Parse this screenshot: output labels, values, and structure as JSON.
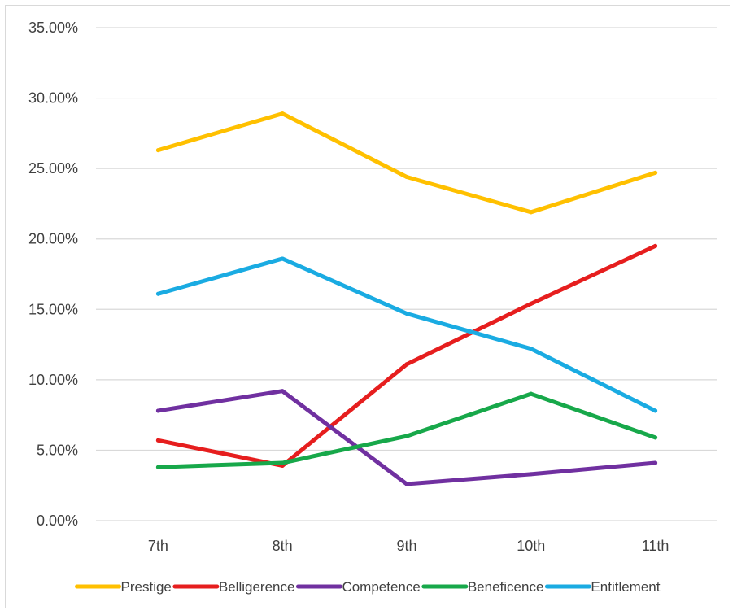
{
  "chart_data": {
    "type": "line",
    "title": "",
    "xlabel": "",
    "ylabel": "",
    "categories": [
      "7th",
      "8th",
      "9th",
      "10th",
      "11th"
    ],
    "ylim": [
      0,
      0.35
    ],
    "yticks": [
      0,
      0.05,
      0.1,
      0.15,
      0.2,
      0.25,
      0.3,
      0.35
    ],
    "ytick_labels": [
      "0.00%",
      "5.00%",
      "10.00%",
      "15.00%",
      "20.00%",
      "25.00%",
      "30.00%",
      "35.00%"
    ],
    "grid": true,
    "legend_position": "bottom",
    "series": [
      {
        "name": "Prestige",
        "color": "#FFC000",
        "values": [
          0.263,
          0.289,
          0.244,
          0.219,
          0.247
        ]
      },
      {
        "name": "Belligerence",
        "color": "#E61E1E",
        "values": [
          0.057,
          0.039,
          0.111,
          0.154,
          0.195
        ]
      },
      {
        "name": "Competence",
        "color": "#7030A0",
        "values": [
          0.078,
          0.092,
          0.026,
          0.033,
          0.041
        ]
      },
      {
        "name": "Beneficence",
        "color": "#17A84A",
        "values": [
          0.038,
          0.041,
          0.06,
          0.09,
          0.059
        ]
      },
      {
        "name": "Entitlement",
        "color": "#1AABE2",
        "values": [
          0.161,
          0.186,
          0.147,
          0.122,
          0.078
        ]
      }
    ]
  }
}
